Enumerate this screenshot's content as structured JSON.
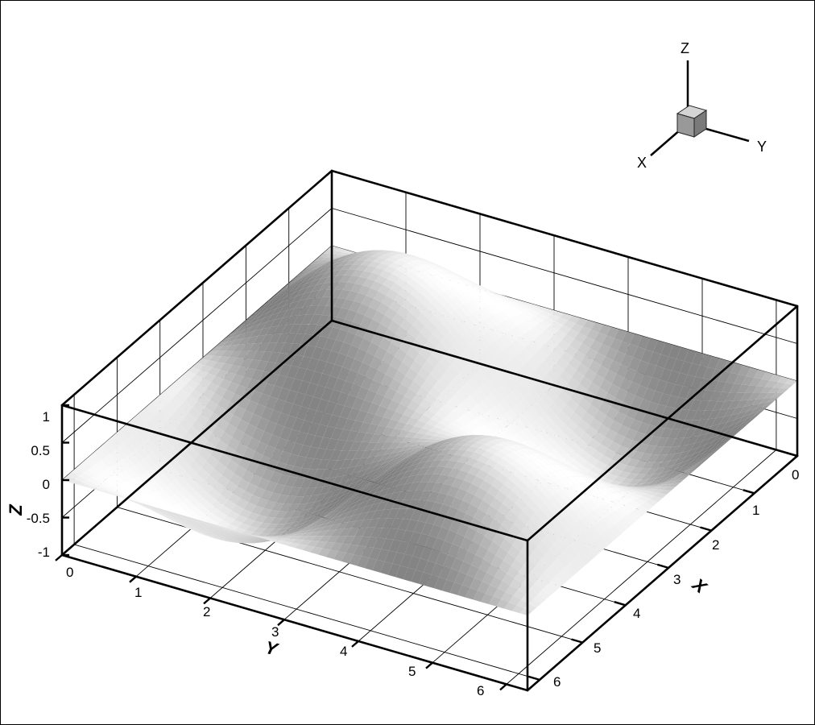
{
  "chart_data": {
    "type": "surface",
    "xlabel": "X",
    "ylabel": "Y",
    "zlabel": "Z",
    "xlim": [
      0,
      6.2832
    ],
    "ylim": [
      0,
      6.2832
    ],
    "zlim": [
      -1,
      1
    ],
    "x_ticks": [
      "0",
      "1",
      "2",
      "3",
      "4",
      "5",
      "6"
    ],
    "y_ticks": [
      "0",
      "1",
      "2",
      "3",
      "4",
      "5",
      "6"
    ],
    "z_ticks": [
      "1",
      "0.5",
      "0",
      "-0.5",
      "-1"
    ],
    "z_tick_values": [
      1,
      0.5,
      0,
      -0.5,
      -1
    ],
    "surface_function": "z = sin(x) * sin(y)",
    "shading": "grayscale",
    "grid": true,
    "orientation_axes": {
      "z": "Z",
      "y": "Y",
      "x": "X"
    }
  }
}
